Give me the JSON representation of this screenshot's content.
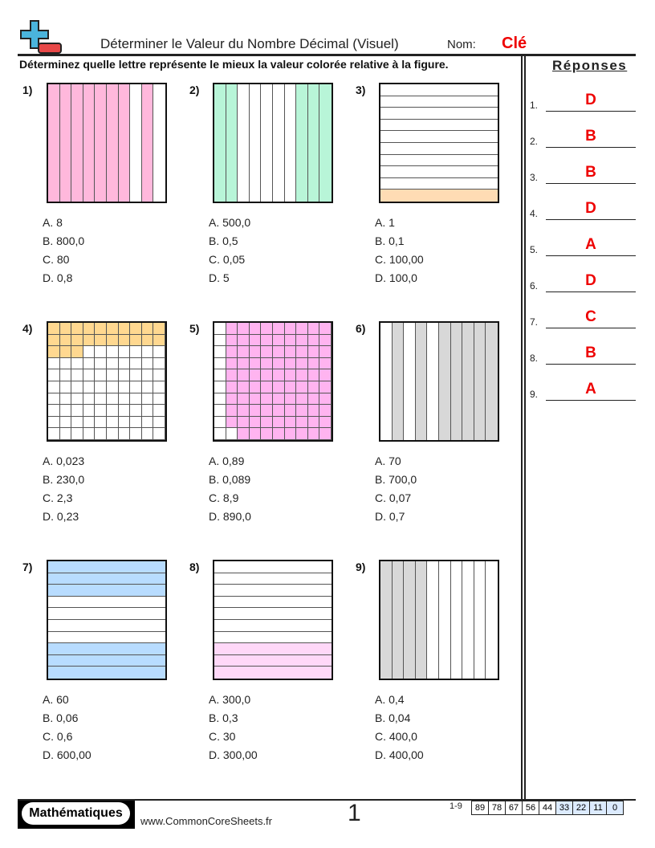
{
  "header": {
    "title": "Déterminer le Valeur du Nombre Décimal (Visuel)",
    "name_label": "Nom:",
    "name_value": "Clé",
    "instructions": "Déterminez quelle lettre représente le mieux la valeur colorée relative à la figure."
  },
  "answers_panel": {
    "title": "Réponses",
    "answers": [
      {
        "n": "1.",
        "v": "D"
      },
      {
        "n": "2.",
        "v": "B"
      },
      {
        "n": "3.",
        "v": "B"
      },
      {
        "n": "4.",
        "v": "D"
      },
      {
        "n": "5.",
        "v": "A"
      },
      {
        "n": "6.",
        "v": "D"
      },
      {
        "n": "7.",
        "v": "C"
      },
      {
        "n": "8.",
        "v": "B"
      },
      {
        "n": "9.",
        "v": "A"
      }
    ]
  },
  "problems": [
    {
      "label": "1)",
      "figure": {
        "type": "columns",
        "shaded": [
          0,
          1,
          2,
          3,
          4,
          5,
          6,
          8
        ],
        "color": "#ffb8dc"
      },
      "options": [
        "A. 8",
        "B. 800,0",
        "C. 80",
        "D. 0,8"
      ]
    },
    {
      "label": "2)",
      "figure": {
        "type": "columns",
        "shaded": [
          0,
          1,
          7,
          8,
          9
        ],
        "color": "#b8f5d8"
      },
      "options": [
        "A. 500,0",
        "B. 0,5",
        "C. 0,05",
        "D. 5"
      ]
    },
    {
      "label": "3)",
      "figure": {
        "type": "rows",
        "shaded": [
          9
        ],
        "color": "#ffdcb4"
      },
      "options": [
        "A. 1",
        "B. 0,1",
        "C. 100,00",
        "D. 100,0"
      ]
    },
    {
      "label": "4)",
      "figure": {
        "type": "grid",
        "shaded_count": 23,
        "color": "#ffd890"
      },
      "options": [
        "A. 0,023",
        "B. 230,0",
        "C. 2,3",
        "D. 0,23"
      ]
    },
    {
      "label": "5)",
      "figure": {
        "type": "grid5",
        "shaded_count": 89,
        "color": "#ffb4f0"
      },
      "options": [
        "A. 0,89",
        "B. 0,089",
        "C. 8,9",
        "D. 890,0"
      ]
    },
    {
      "label": "6)",
      "figure": {
        "type": "columns",
        "shaded": [
          1,
          3,
          5,
          6,
          7,
          8,
          9
        ],
        "color": "#d8d8d8"
      },
      "options": [
        "A. 70",
        "B. 700,0",
        "C. 0,07",
        "D. 0,7"
      ]
    },
    {
      "label": "7)",
      "figure": {
        "type": "rows",
        "shaded": [
          0,
          1,
          2,
          7,
          8,
          9
        ],
        "color": "#b8dcff"
      },
      "options": [
        "A. 60",
        "B. 0,06",
        "C. 0,6",
        "D. 600,00"
      ]
    },
    {
      "label": "8)",
      "figure": {
        "type": "rows",
        "shaded": [
          7,
          8,
          9
        ],
        "color": "#ffd8f8"
      },
      "options": [
        "A. 300,0",
        "B. 0,3",
        "C. 30",
        "D. 300,00"
      ]
    },
    {
      "label": "9)",
      "figure": {
        "type": "columns",
        "shaded": [
          0,
          1,
          2,
          3
        ],
        "color": "#d8d8d8"
      },
      "options": [
        "A. 0,4",
        "B. 0,04",
        "C. 400,0",
        "D. 400,00"
      ]
    }
  ],
  "footer": {
    "brand": "Mathématiques",
    "site": "www.CommonCoreSheets.fr",
    "page": "1",
    "range": "1-9",
    "scores": [
      "89",
      "78",
      "67",
      "56",
      "44",
      "33",
      "22",
      "11",
      "0"
    ]
  }
}
